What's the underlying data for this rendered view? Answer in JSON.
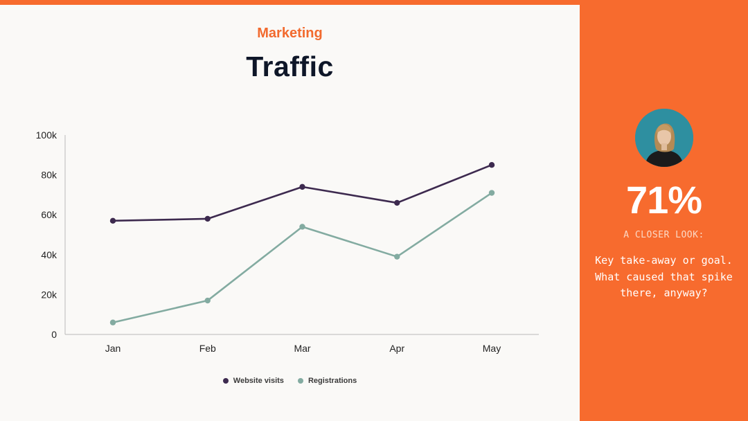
{
  "header": {
    "eyebrow": "Marketing",
    "title": "Traffic"
  },
  "chart_data": {
    "type": "line",
    "categories": [
      "Jan",
      "Feb",
      "Mar",
      "Apr",
      "May"
    ],
    "series": [
      {
        "name": "Website visits",
        "values": [
          57000,
          58000,
          74000,
          66000,
          85000
        ],
        "color": "#3D2A4F"
      },
      {
        "name": "Registrations",
        "values": [
          6000,
          17000,
          54000,
          39000,
          71000
        ],
        "color": "#83ABA1"
      }
    ],
    "ylim": [
      0,
      100000
    ],
    "yticks": [
      0,
      20000,
      40000,
      60000,
      80000,
      100000
    ],
    "ytick_labels": [
      "0",
      "20k",
      "40k",
      "60k",
      "80k",
      "100k"
    ],
    "legend_position": "bottom",
    "grid": false
  },
  "sidebar": {
    "stat": "71%",
    "kicker": "A CLOSER LOOK:",
    "note": "Key take-away or goal. What caused that spike there, anyway?"
  },
  "colors": {
    "accent": "#F76B2E",
    "background": "#FAF9F7",
    "title": "#0E1628"
  }
}
